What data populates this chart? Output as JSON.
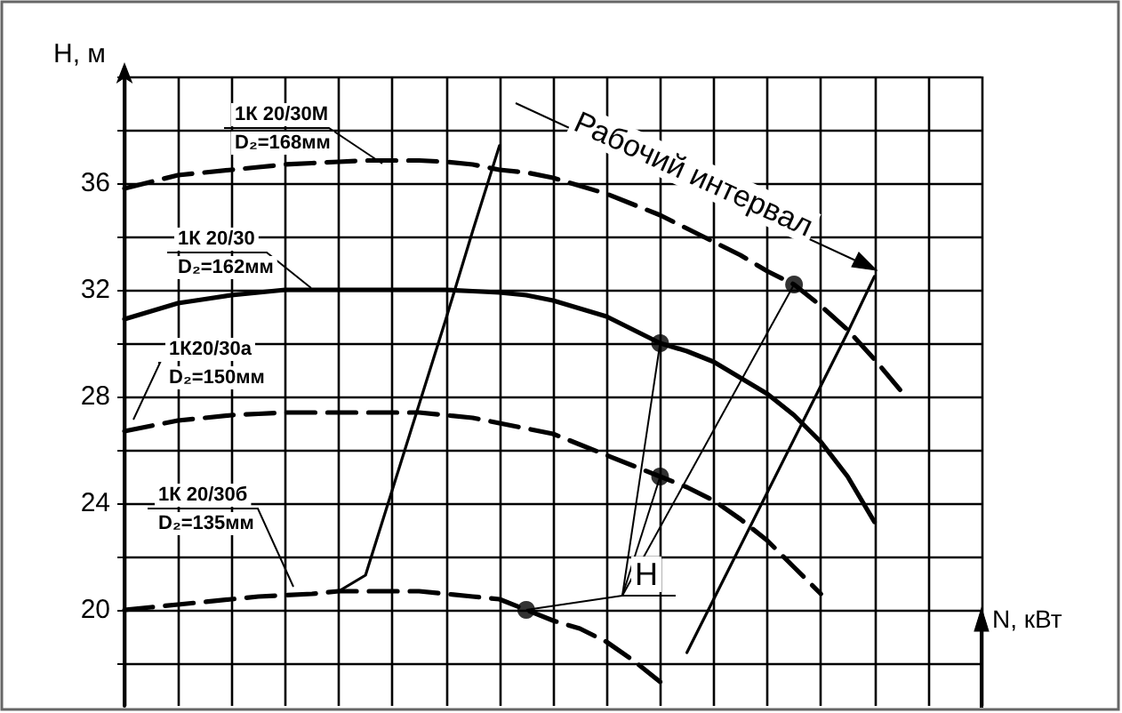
{
  "chart_data": {
    "type": "line",
    "ylabel": "H, м",
    "xlabel": "N, кВт",
    "categories": [
      null,
      null,
      null,
      null,
      null,
      null,
      null,
      null,
      null,
      null,
      null,
      null,
      null,
      null,
      null,
      null,
      null,
      null,
      null,
      null,
      null,
      null,
      null,
      null,
      null,
      null,
      null,
      null,
      null,
      null,
      null,
      null,
      null
    ],
    "series": [
      {
        "name": "1К 20/30М",
        "color": "#000000",
        "line_style": "dashed",
        "values": [
          35.8,
          36.05,
          36.3,
          36.4,
          36.5,
          36.6,
          36.7,
          36.75,
          36.8,
          36.85,
          36.85,
          36.85,
          36.8,
          36.7,
          36.5,
          36.4,
          36.2,
          35.9,
          35.6,
          35.2,
          34.8,
          34.3,
          33.8,
          33.3,
          32.7,
          32.2,
          31.4,
          30.5,
          29.4,
          28.2,
          null,
          null,
          null
        ]
      },
      {
        "name": "1К 20/30",
        "color": "#000000",
        "line_style": "solid",
        "values": [
          30.9,
          31.2,
          31.5,
          31.65,
          31.8,
          31.9,
          32.0,
          32.0,
          32.0,
          32.0,
          32.0,
          32.0,
          32.0,
          31.95,
          31.9,
          31.8,
          31.6,
          31.3,
          31.0,
          30.5,
          30.0,
          29.7,
          29.3,
          28.7,
          28.1,
          27.3,
          26.3,
          25.0,
          23.3,
          null,
          null,
          null,
          null
        ]
      },
      {
        "name": "1К20/30а",
        "color": "#000000",
        "line_style": "dashed",
        "values": [
          26.7,
          26.9,
          27.1,
          27.2,
          27.3,
          27.35,
          27.4,
          27.4,
          27.4,
          27.4,
          27.4,
          27.4,
          27.3,
          27.2,
          27.0,
          26.8,
          26.6,
          26.2,
          25.8,
          25.4,
          25.0,
          24.6,
          24.1,
          23.4,
          22.6,
          21.6,
          20.6,
          null,
          null,
          null,
          null,
          null,
          null
        ]
      },
      {
        "name": "1К 20/30б",
        "color": "#000000",
        "line_style": "dashed",
        "values": [
          20.0,
          20.1,
          20.2,
          20.3,
          20.4,
          20.5,
          20.55,
          20.6,
          20.7,
          20.7,
          20.7,
          20.7,
          20.6,
          20.5,
          20.4,
          20.0,
          19.6,
          19.3,
          18.8,
          18.1,
          17.3,
          null,
          null,
          null,
          null,
          null,
          null,
          null,
          null,
          null,
          null,
          null,
          null
        ]
      },
      {
        "type": "line",
        "color": "#000000",
        "line_style": "solid",
        "values": [
          null,
          null,
          null,
          null,
          null,
          null,
          null,
          null,
          20.7,
          21.3,
          24.5,
          27.7,
          30.9,
          34.2,
          37.4,
          null,
          null,
          null,
          null,
          null,
          null,
          null,
          null,
          null,
          null,
          null,
          null,
          null,
          null,
          null,
          null,
          null,
          null
        ]
      },
      {
        "type": "line",
        "color": "#000000",
        "line_style": "solid",
        "values": [
          null,
          null,
          null,
          null,
          null,
          null,
          null,
          null,
          null,
          null,
          null,
          null,
          null,
          null,
          null,
          null,
          null,
          null,
          null,
          null,
          null,
          18.4,
          20.4,
          22.4,
          24.4,
          26.4,
          28.4,
          30.4,
          32.5,
          null,
          null,
          null,
          null
        ]
      },
      {
        "type": "scatter",
        "color": "#000000",
        "marker": "circle",
        "values": [
          null,
          null,
          null,
          null,
          null,
          null,
          null,
          null,
          null,
          null,
          null,
          null,
          null,
          null,
          null,
          20.0,
          null,
          null,
          null,
          null,
          30.0,
          null,
          null,
          null,
          null,
          32.2,
          null,
          null,
          null,
          null,
          null,
          null,
          null
        ]
      },
      {
        "type": "scatter",
        "color": "#000000",
        "marker": "circle",
        "values": [
          null,
          null,
          null,
          null,
          null,
          null,
          null,
          null,
          null,
          null,
          null,
          null,
          null,
          null,
          null,
          null,
          null,
          null,
          null,
          null,
          25.0,
          null,
          null,
          null,
          null,
          null,
          null,
          null,
          null,
          null,
          null,
          null,
          null
        ]
      }
    ],
    "ylim": [
      16.4,
      40
    ],
    "yticks": [
      {
        "value": 18,
        "label": null
      },
      20,
      {
        "value": 22,
        "label": null
      },
      24,
      {
        "value": 26,
        "label": null
      },
      28,
      {
        "value": 30,
        "label": null
      },
      32,
      {
        "value": 34,
        "label": null
      },
      36,
      {
        "value": 38,
        "label": null
      },
      {
        "value": 40,
        "label": null
      }
    ],
    "tick_labels": "y",
    "grid": true,
    "legend": false,
    "marker": "none",
    "annotations": [
      "D₂=168мм",
      "D₂=162мм",
      "D₂=150мм",
      "D₂=135мм",
      "Рабочий интервал",
      "H"
    ]
  }
}
